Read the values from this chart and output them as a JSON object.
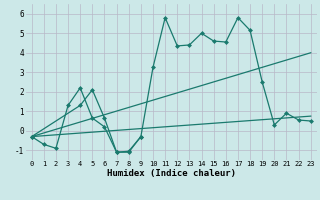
{
  "bg_color": "#cce8e8",
  "line_color": "#1a7a6e",
  "grid_color": "#b8b8c8",
  "xlabel": "Humidex (Indice chaleur)",
  "ylim": [
    -1.5,
    6.5
  ],
  "xlim": [
    -0.5,
    23.5
  ],
  "yticks": [
    -1,
    0,
    1,
    2,
    3,
    4,
    5,
    6
  ],
  "xticks": [
    0,
    1,
    2,
    3,
    4,
    5,
    6,
    7,
    8,
    9,
    10,
    11,
    12,
    13,
    14,
    15,
    16,
    17,
    18,
    19,
    20,
    21,
    22,
    23
  ],
  "curve1_x": [
    0,
    1,
    2,
    3,
    4,
    5,
    6,
    7,
    8,
    9
  ],
  "curve1_y": [
    -0.3,
    -0.7,
    -0.9,
    1.3,
    2.2,
    0.65,
    0.2,
    -1.1,
    -1.1,
    -0.3
  ],
  "curve2_x": [
    0,
    4,
    5,
    6,
    7,
    8,
    9,
    10,
    11,
    12,
    13,
    14,
    15,
    16,
    17,
    18,
    19,
    20,
    21,
    22,
    23
  ],
  "curve2_y": [
    -0.3,
    1.3,
    2.1,
    0.65,
    -1.1,
    -1.05,
    -0.3,
    3.25,
    5.8,
    4.35,
    4.4,
    5.0,
    4.6,
    4.55,
    5.8,
    5.15,
    2.5,
    0.3,
    0.9,
    0.55,
    0.5
  ],
  "trend1_x": [
    0,
    23
  ],
  "trend1_y": [
    -0.3,
    4.0
  ],
  "trend2_x": [
    0,
    23
  ],
  "trend2_y": [
    -0.3,
    0.75
  ]
}
